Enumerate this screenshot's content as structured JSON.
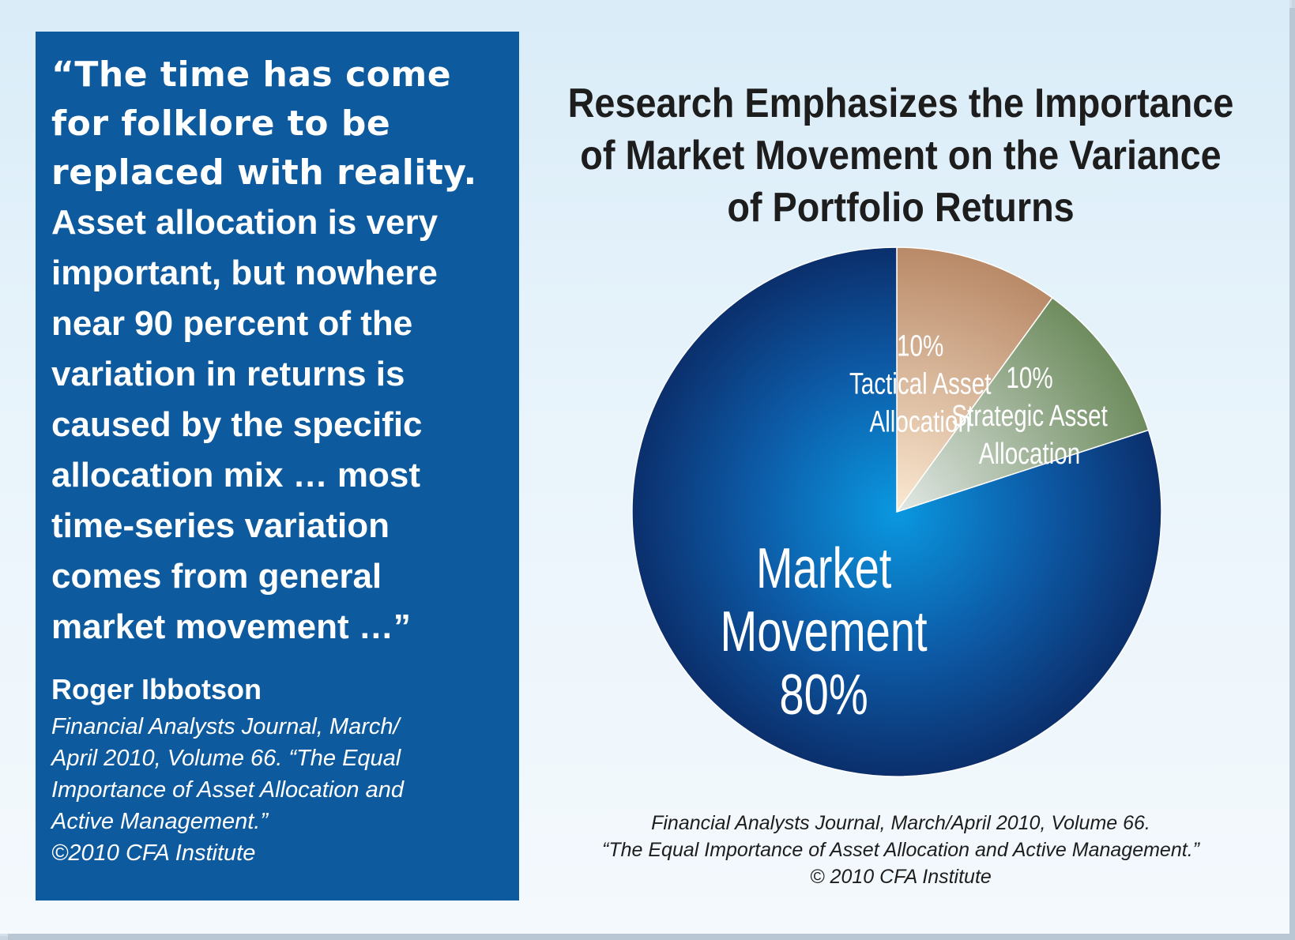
{
  "quote": {
    "lead": "“The time has come\nfor folklore to be\nreplaced with reality.",
    "body": "Asset allocation is very\nimportant, but nowhere\nnear 90 percent of the\nvariation in returns is\ncaused by the specific\nallocation mix … most\ntime-series variation\ncomes from general\nmarket movement …”",
    "author": "Roger Ibbotson",
    "citation": "Financial Analysts Journal, March/\nApril 2010, Volume 66. “The Equal\nImportance of Asset Allocation and\nActive Management.”\n©2010 CFA Institute"
  },
  "chart_data": {
    "type": "pie",
    "title": "Research Emphasizes the Importance\nof Market Movement on the Variance\nof Portfolio Returns",
    "slices": [
      {
        "label_lines": [
          "10%",
          "Tactical Asset",
          "Allocation"
        ],
        "value": 10,
        "color": "#b98a68"
      },
      {
        "label_lines": [
          "10%",
          "Strategic Asset",
          "Allocation"
        ],
        "value": 10,
        "color": "#6e8c5e"
      },
      {
        "label_lines": [
          "Market",
          "Movement",
          "80%"
        ],
        "value": 80,
        "color": "#0e3f86"
      }
    ],
    "start": "12 o'clock",
    "direction": "clockwise",
    "source": "Financial Analysts Journal, March/April 2010, Volume 66.\n“The Equal Importance of Asset Allocation and Active Management.”\n© 2010 CFA Institute"
  }
}
